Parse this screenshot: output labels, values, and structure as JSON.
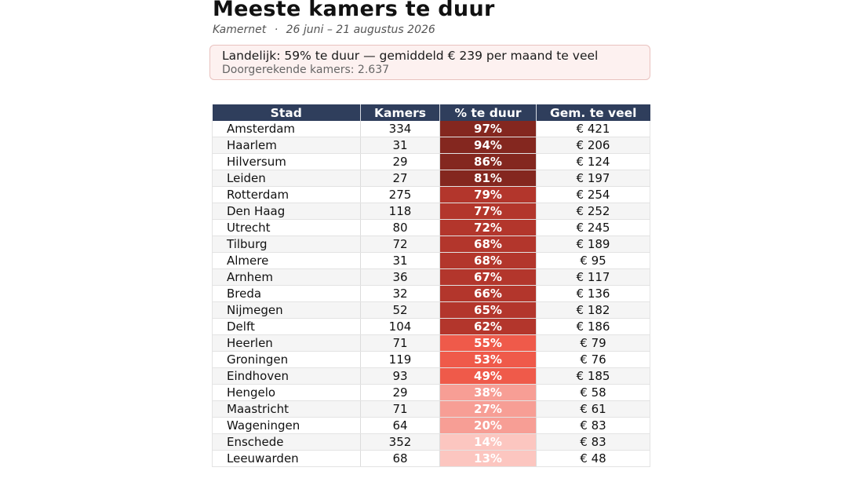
{
  "header": {
    "title": "Meeste kamers te duur",
    "source": "Kamernet",
    "separator": "·",
    "period": "26 juni – 21 augustus 2026"
  },
  "summary": {
    "headline": "Landelijk: 59% te duur — gemiddeld € 239 per maand te veel",
    "computed": "Doorgerekende kamers: 2.637"
  },
  "chart_data": {
    "type": "table",
    "columns": [
      "Stad",
      "Kamers",
      "% te duur",
      "Gem. te veel"
    ],
    "rows": [
      {
        "stad": "Amsterdam",
        "kamers": 334,
        "pct_te_duur": 97,
        "pct_label": "97%",
        "te_veel": "€ 421"
      },
      {
        "stad": "Haarlem",
        "kamers": 31,
        "pct_te_duur": 94,
        "pct_label": "94%",
        "te_veel": "€ 206"
      },
      {
        "stad": "Hilversum",
        "kamers": 29,
        "pct_te_duur": 86,
        "pct_label": "86%",
        "te_veel": "€ 124"
      },
      {
        "stad": "Leiden",
        "kamers": 27,
        "pct_te_duur": 81,
        "pct_label": "81%",
        "te_veel": "€ 197"
      },
      {
        "stad": "Rotterdam",
        "kamers": 275,
        "pct_te_duur": 79,
        "pct_label": "79%",
        "te_veel": "€ 254"
      },
      {
        "stad": "Den Haag",
        "kamers": 118,
        "pct_te_duur": 77,
        "pct_label": "77%",
        "te_veel": "€ 252"
      },
      {
        "stad": "Utrecht",
        "kamers": 80,
        "pct_te_duur": 72,
        "pct_label": "72%",
        "te_veel": "€ 245"
      },
      {
        "stad": "Tilburg",
        "kamers": 72,
        "pct_te_duur": 68,
        "pct_label": "68%",
        "te_veel": "€ 189"
      },
      {
        "stad": "Almere",
        "kamers": 31,
        "pct_te_duur": 68,
        "pct_label": "68%",
        "te_veel": "€ 95"
      },
      {
        "stad": "Arnhem",
        "kamers": 36,
        "pct_te_duur": 67,
        "pct_label": "67%",
        "te_veel": "€ 117"
      },
      {
        "stad": "Breda",
        "kamers": 32,
        "pct_te_duur": 66,
        "pct_label": "66%",
        "te_veel": "€ 136"
      },
      {
        "stad": "Nijmegen",
        "kamers": 52,
        "pct_te_duur": 65,
        "pct_label": "65%",
        "te_veel": "€ 182"
      },
      {
        "stad": "Delft",
        "kamers": 104,
        "pct_te_duur": 62,
        "pct_label": "62%",
        "te_veel": "€ 186"
      },
      {
        "stad": "Heerlen",
        "kamers": 71,
        "pct_te_duur": 55,
        "pct_label": "55%",
        "te_veel": "€ 79"
      },
      {
        "stad": "Groningen",
        "kamers": 119,
        "pct_te_duur": 53,
        "pct_label": "53%",
        "te_veel": "€ 76"
      },
      {
        "stad": "Eindhoven",
        "kamers": 93,
        "pct_te_duur": 49,
        "pct_label": "49%",
        "te_veel": "€ 185"
      },
      {
        "stad": "Hengelo",
        "kamers": 29,
        "pct_te_duur": 38,
        "pct_label": "38%",
        "te_veel": "€ 58"
      },
      {
        "stad": "Maastricht",
        "kamers": 71,
        "pct_te_duur": 27,
        "pct_label": "27%",
        "te_veel": "€ 61"
      },
      {
        "stad": "Wageningen",
        "kamers": 64,
        "pct_te_duur": 20,
        "pct_label": "20%",
        "te_veel": "€ 83"
      },
      {
        "stad": "Enschede",
        "kamers": 352,
        "pct_te_duur": 14,
        "pct_label": "14%",
        "te_veel": "€ 83"
      },
      {
        "stad": "Leeuwarden",
        "kamers": 68,
        "pct_te_duur": 13,
        "pct_label": "13%",
        "te_veel": "€ 48"
      }
    ],
    "color_scale": [
      {
        "min": 80,
        "color": "#84271f"
      },
      {
        "min": 60,
        "color": "#b3362c"
      },
      {
        "min": 40,
        "color": "#ef5a4a"
      },
      {
        "min": 20,
        "color": "#f79e95"
      },
      {
        "min": 0,
        "color": "#fcc6c0"
      }
    ]
  }
}
